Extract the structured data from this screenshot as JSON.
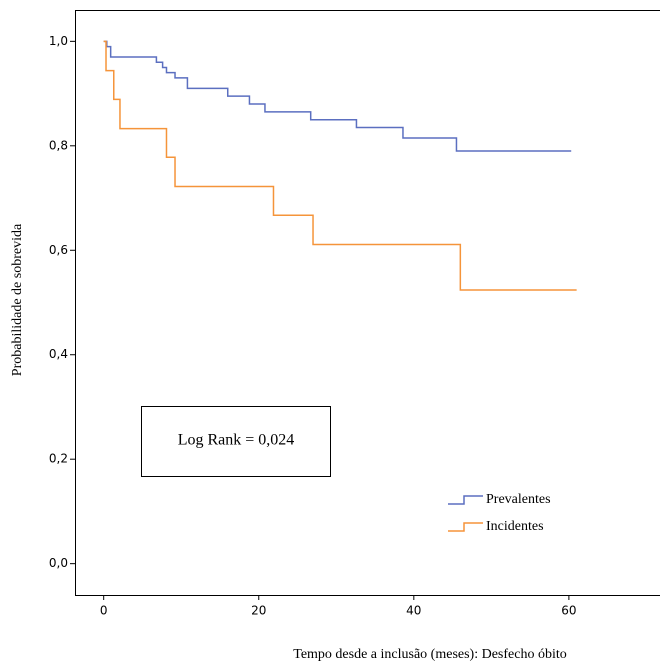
{
  "chart_data": {
    "type": "line",
    "step": "post",
    "x_label": "Tempo desde a inclusão (meses): Desfecho óbito",
    "y_label": "Probabilidade de sobrevida",
    "annotation": "Log Rank = 0,024",
    "xlim": [
      -3.7,
      71.7
    ],
    "xticks": [
      0,
      20,
      40,
      60
    ],
    "ylim": [
      -0.06,
      1.06
    ],
    "yticks": [
      {
        "value": 0,
        "label": "0,0"
      },
      {
        "value": 0.2,
        "label": "0,2"
      },
      {
        "value": 0.4,
        "label": "0,4"
      },
      {
        "value": 0.6,
        "label": "0,6"
      },
      {
        "value": 0.8,
        "label": "0,8"
      },
      {
        "value": 1,
        "label": "1,0"
      }
    ],
    "legend": "lower right",
    "series": [
      {
        "name": "Prevalentes",
        "color": "#5b6fc0",
        "x": [
          0,
          0.4,
          0.9,
          6.8,
          7.6,
          8.1,
          9.2,
          10.8,
          16,
          18.8,
          20.8,
          26.7,
          32.6,
          38.6,
          45.5,
          60.3
        ],
        "values": [
          1.0,
          0.99,
          0.97,
          0.96,
          0.95,
          0.94,
          0.93,
          0.91,
          0.895,
          0.88,
          0.865,
          0.85,
          0.835,
          0.815,
          0.79,
          0.79
        ]
      },
      {
        "name": "Incidentes",
        "color": "#f5943a",
        "x": [
          0,
          0.3,
          1.3,
          2.1,
          8.1,
          9.2,
          21.9,
          27,
          46,
          61
        ],
        "values": [
          1.0,
          0.944,
          0.889,
          0.833,
          0.778,
          0.722,
          0.667,
          0.611,
          0.524,
          0.524
        ]
      }
    ]
  }
}
